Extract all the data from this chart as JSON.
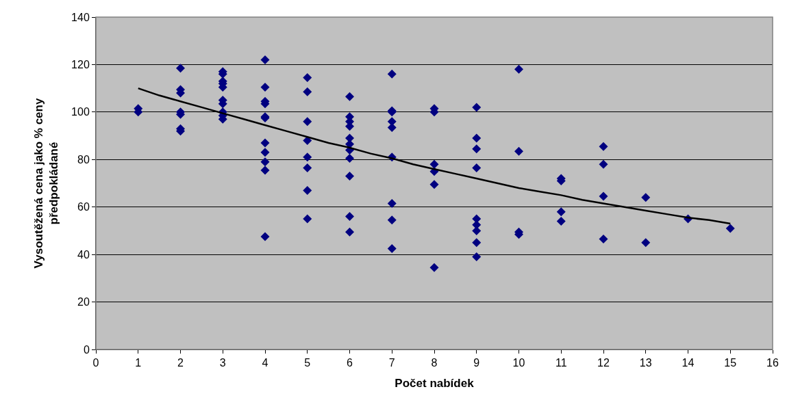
{
  "chart_data": {
    "type": "scatter",
    "xlabel": "Počet nabídek",
    "ylabel": "Vysoutěžená cena jako % ceny předpokládané",
    "xlim": [
      0,
      16
    ],
    "xticks": [
      0,
      1,
      2,
      3,
      4,
      5,
      6,
      7,
      8,
      9,
      10,
      11,
      12,
      13,
      14,
      15,
      16
    ],
    "ylim": [
      0,
      140
    ],
    "yticks": [
      0,
      20,
      40,
      60,
      80,
      100,
      120,
      140
    ],
    "grid": "y",
    "marker": "diamond",
    "series": [
      {
        "color": "#000080",
        "x": [
          1,
          1,
          2,
          2,
          2,
          2,
          2,
          2,
          2,
          3,
          3,
          3,
          3,
          3,
          3,
          3,
          3,
          3,
          3,
          4,
          4,
          4,
          4,
          4,
          4,
          4,
          4,
          4,
          4,
          4,
          5,
          5,
          5,
          5,
          5,
          5,
          5,
          5,
          6,
          6,
          6,
          6,
          6,
          6,
          6,
          6,
          6,
          6,
          6,
          7,
          7,
          7,
          7,
          7,
          7,
          7,
          7,
          7,
          8,
          8,
          8,
          8,
          8,
          8,
          9,
          9,
          9,
          9,
          9,
          9,
          9,
          9,
          9,
          10,
          10,
          10,
          10,
          11,
          11,
          11,
          11,
          12,
          12,
          12,
          12,
          13,
          13,
          14,
          15
        ],
        "values": [
          101.5,
          100,
          118.5,
          109.5,
          108,
          100,
          99,
          93,
          92,
          117,
          116,
          113,
          112,
          110.5,
          105,
          103.5,
          100,
          98.5,
          97,
          122,
          110.5,
          104.5,
          103.5,
          98,
          97.5,
          87,
          83,
          79,
          75.5,
          47.5,
          114.5,
          108.5,
          96,
          88,
          81,
          76.5,
          67,
          55,
          106.5,
          98,
          96,
          94,
          89,
          86.5,
          84,
          80.5,
          73,
          56,
          49.5,
          116,
          100.5,
          100,
          96,
          93.5,
          81,
          61.5,
          54.5,
          42.5,
          101.5,
          100,
          78,
          75,
          69.5,
          34.5,
          102,
          89,
          84.5,
          76.5,
          55,
          52.5,
          50,
          45,
          39,
          118,
          83.5,
          49.5,
          48.5,
          72,
          71,
          58,
          54,
          85.5,
          78,
          64.5,
          46.5,
          64,
          45,
          55,
          51
        ]
      },
      {
        "color": "#000000",
        "type": "line",
        "marker": "none",
        "line_style": "solid",
        "x": [
          1,
          1.5,
          2,
          2.5,
          3,
          3.5,
          4,
          4.5,
          5,
          5.5,
          6,
          6.5,
          7,
          7.5,
          8,
          8.5,
          9,
          9.5,
          10,
          10.5,
          11,
          11.5,
          12,
          12.5,
          13,
          13.5,
          14,
          14.5,
          15
        ],
        "values": [
          110,
          107,
          104.5,
          102,
          99.5,
          97,
          94.5,
          92,
          89.5,
          87,
          85,
          82.5,
          80.5,
          78,
          76,
          74,
          72,
          70,
          68,
          66.5,
          65,
          63,
          61.5,
          60,
          58.5,
          57,
          55.5,
          54.5,
          53
        ]
      }
    ]
  }
}
